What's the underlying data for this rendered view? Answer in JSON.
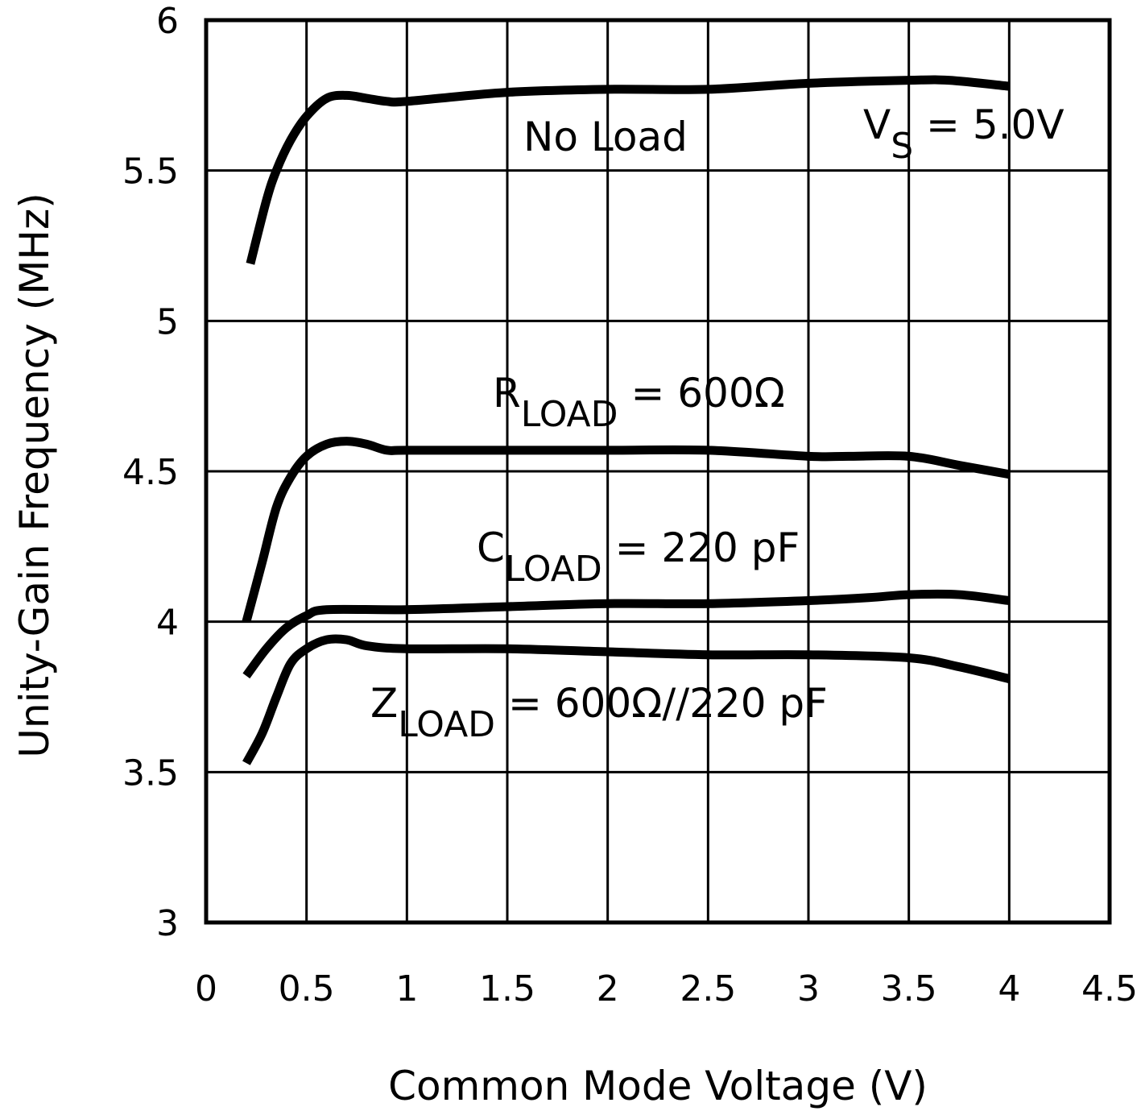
{
  "chart_data": {
    "type": "line",
    "title": "",
    "xlabel": "Common Mode Voltage (V)",
    "ylabel": "Unity-Gain Frequency (MHz)",
    "xlim": [
      0,
      4.5
    ],
    "ylim": [
      3,
      6
    ],
    "xticks": [
      "0",
      "0.5",
      "1",
      "1.5",
      "2",
      "2.5",
      "3",
      "3.5",
      "4",
      "4.5"
    ],
    "yticks": [
      "3",
      "3.5",
      "4",
      "4.5",
      "5",
      "5.5",
      "6"
    ],
    "grid": true,
    "line_color": "#000000",
    "series": [
      {
        "x": [
          0.22,
          0.3,
          0.35,
          0.42,
          0.5,
          0.6,
          0.7,
          0.8,
          0.9,
          1.0,
          1.5,
          2.0,
          2.5,
          3.0,
          3.5,
          3.7,
          4.0
        ],
        "y": [
          5.19,
          5.4,
          5.5,
          5.6,
          5.68,
          5.74,
          5.75,
          5.74,
          5.73,
          5.73,
          5.76,
          5.77,
          5.77,
          5.79,
          5.8,
          5.8,
          5.78
        ]
      },
      {
        "x": [
          0.2,
          0.28,
          0.35,
          0.42,
          0.5,
          0.6,
          0.7,
          0.8,
          0.9,
          1.0,
          1.5,
          2.0,
          2.5,
          3.0,
          3.2,
          3.5,
          3.75,
          4.0
        ],
        "y": [
          4.0,
          4.2,
          4.38,
          4.48,
          4.55,
          4.59,
          4.6,
          4.59,
          4.57,
          4.57,
          4.57,
          4.57,
          4.57,
          4.55,
          4.55,
          4.55,
          4.52,
          4.49
        ]
      },
      {
        "x": [
          0.2,
          0.3,
          0.4,
          0.5,
          0.6,
          1.0,
          1.5,
          2.0,
          2.5,
          3.0,
          3.3,
          3.5,
          3.75,
          4.0
        ],
        "y": [
          3.82,
          3.91,
          3.98,
          4.02,
          4.04,
          4.04,
          4.05,
          4.06,
          4.06,
          4.07,
          4.08,
          4.09,
          4.09,
          4.07
        ]
      },
      {
        "x": [
          0.2,
          0.28,
          0.35,
          0.42,
          0.5,
          0.6,
          0.7,
          0.8,
          1.0,
          1.5,
          2.0,
          2.5,
          3.0,
          3.5,
          3.75,
          4.0
        ],
        "y": [
          3.53,
          3.63,
          3.75,
          3.86,
          3.91,
          3.94,
          3.94,
          3.92,
          3.91,
          3.91,
          3.9,
          3.89,
          3.89,
          3.88,
          3.85,
          3.81
        ]
      }
    ],
    "annotations": [
      {
        "main": "No Load",
        "sub": "",
        "rest": ""
      },
      {
        "main": "V",
        "sub": "S",
        "rest": " = 5.0V"
      },
      {
        "main": "R",
        "sub": "LOAD",
        "rest": " = 600Ω"
      },
      {
        "main": "C",
        "sub": "LOAD",
        "rest": " = 220 pF"
      },
      {
        "main": "Z",
        "sub": "LOAD",
        "rest": " = 600Ω//220 pF"
      }
    ]
  }
}
